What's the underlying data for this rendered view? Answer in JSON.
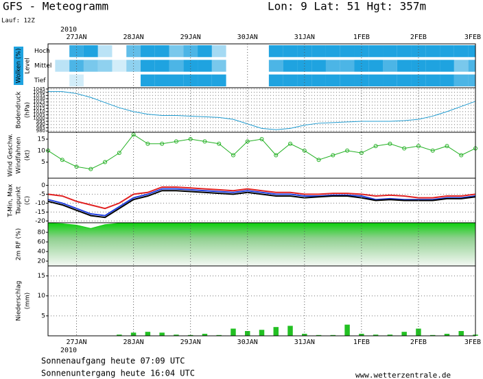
{
  "header": {
    "title": "GFS - Meteogramm",
    "location": "Lon: 9  Lat: 51  Hgt: 357m",
    "run": "Lauf: 12Z"
  },
  "time_axis": {
    "year": "2010",
    "xlim": [
      0,
      30
    ],
    "xticks": [
      {
        "value": 2,
        "label": "27JAN"
      },
      {
        "value": 6,
        "label": "28JAN"
      },
      {
        "value": 10,
        "label": "29JAN"
      },
      {
        "value": 14,
        "label": "30JAN"
      },
      {
        "value": 18,
        "label": "31JAN"
      },
      {
        "value": 22,
        "label": "1FEB"
      },
      {
        "value": 26,
        "label": "2FEB"
      },
      {
        "value": 30,
        "label": "3FEB"
      }
    ]
  },
  "chart_data": [
    {
      "type": "heatmap",
      "ylabel": [
        "Wolken (%)",
        "Level"
      ],
      "label_colors": [
        "#ffffff",
        "#000000"
      ],
      "color": "#1fa3e0",
      "categories": [
        "Hoch",
        "Mittel",
        "Tief"
      ],
      "values": [
        [
          0,
          0,
          90,
          100,
          30,
          0,
          70,
          100,
          100,
          60,
          80,
          100,
          40,
          0,
          0,
          0,
          100,
          100,
          100,
          100,
          100,
          100,
          100,
          100,
          100,
          100,
          100,
          100,
          100,
          100,
          100
        ],
        [
          0,
          30,
          80,
          60,
          50,
          20,
          50,
          100,
          100,
          80,
          100,
          100,
          60,
          0,
          0,
          0,
          80,
          100,
          100,
          100,
          80,
          80,
          100,
          100,
          80,
          100,
          100,
          100,
          100,
          60,
          80
        ],
        [
          0,
          0,
          20,
          0,
          0,
          0,
          0,
          100,
          100,
          100,
          100,
          100,
          100,
          0,
          0,
          0,
          100,
          100,
          100,
          100,
          100,
          100,
          100,
          100,
          100,
          100,
          100,
          100,
          100,
          80,
          80
        ]
      ]
    },
    {
      "type": "line",
      "ylabel": [
        "Bodendruck",
        "(hPa)"
      ],
      "label_colors": [
        "#000000",
        "#000000"
      ],
      "ylim": [
        978,
        1047
      ],
      "yticks": [
        1045,
        1040,
        1035,
        1030,
        1025,
        1020,
        1015,
        1010,
        1005,
        1000,
        995,
        990,
        985,
        980
      ],
      "grid": true,
      "series": [
        {
          "color": "#1f9bd0",
          "values": [
            1041,
            1041,
            1038,
            1032,
            1024,
            1016,
            1010,
            1006,
            1004,
            1004,
            1003,
            1002,
            1001,
            998,
            991,
            984,
            982,
            984,
            989,
            992,
            993,
            994,
            995,
            995,
            995,
            996,
            998,
            1003,
            1010,
            1018,
            1026
          ]
        }
      ]
    },
    {
      "type": "line",
      "ylabel": [
        "Wind Geschw.",
        "Windfahnen",
        "(kt)"
      ],
      "label_colors": [
        "#1aa01a",
        "#000000",
        "#000000"
      ],
      "ylim": [
        -2,
        18
      ],
      "yticks": [
        5,
        10,
        15
      ],
      "grid": false,
      "markers": true,
      "series": [
        {
          "color": "#22b022",
          "values": [
            10,
            6,
            3,
            2,
            5,
            9,
            17,
            13,
            13,
            14,
            15,
            14,
            13,
            8,
            14,
            15,
            8,
            13,
            10,
            6,
            8,
            10,
            9,
            12,
            13,
            11,
            12,
            10,
            12,
            8,
            11
          ]
        }
      ]
    },
    {
      "type": "line",
      "ylabel": [
        "T-Min, Max",
        "Taupunkt",
        "(C)"
      ],
      "label_colors": [
        "#2040d0",
        "#000000",
        "#000000"
      ],
      "ylim": [
        -21,
        4
      ],
      "yticks": [
        0,
        -5,
        -10,
        -15,
        -20
      ],
      "grid": true,
      "series": [
        {
          "color": "#e02020",
          "values": [
            -5,
            -6,
            -9,
            -11,
            -13,
            -10,
            -5,
            -4,
            -1,
            -1,
            -1.5,
            -2,
            -2.5,
            -3,
            -2,
            -3,
            -4,
            -4,
            -5,
            -5,
            -4.5,
            -4.5,
            -5,
            -6,
            -5.5,
            -6,
            -7,
            -7,
            -6,
            -6,
            -5
          ]
        },
        {
          "color": "#2040e0",
          "values": [
            -8,
            -10,
            -13,
            -16,
            -17,
            -12,
            -7,
            -5,
            -2,
            -2,
            -2.5,
            -3,
            -3.5,
            -4,
            -3,
            -4,
            -5,
            -5,
            -6,
            -6,
            -5.5,
            -5.5,
            -6,
            -8,
            -7.5,
            -8,
            -8,
            -8,
            -7,
            -7,
            -6
          ]
        },
        {
          "color": "#000000",
          "values": [
            -9,
            -11,
            -14,
            -17,
            -18,
            -13,
            -8,
            -6,
            -3,
            -3,
            -3.5,
            -4,
            -4.5,
            -5,
            -4,
            -5,
            -6,
            -6,
            -7,
            -6.5,
            -6,
            -6,
            -7,
            -8.5,
            -8,
            -8.5,
            -8.5,
            -8.5,
            -7.5,
            -7.5,
            -6.5
          ]
        }
      ]
    },
    {
      "type": "area",
      "ylabel": [
        "2m RF (%)"
      ],
      "label_colors": [
        "#1aa01a"
      ],
      "ylim": [
        10,
        100
      ],
      "yticks": [
        80,
        60,
        40,
        20
      ],
      "grid": false,
      "series": [
        {
          "color": "#10d010",
          "values": [
            99,
            98,
            95,
            88,
            96,
            99,
            99,
            99,
            99,
            99,
            99,
            99,
            99,
            99,
            99,
            99,
            99,
            99,
            99,
            99,
            99,
            99,
            99,
            99,
            99,
            99,
            99,
            99,
            99,
            99,
            99
          ]
        }
      ]
    },
    {
      "type": "bar",
      "ylabel": [
        "Niederschlag",
        "(mm)"
      ],
      "label_colors": [
        "#000000",
        "#000000"
      ],
      "ylim": [
        0,
        17.5
      ],
      "yticks": [
        15,
        10,
        5
      ],
      "grid": true,
      "series": [
        {
          "color": "#22c022",
          "values": [
            0,
            0,
            0,
            0,
            0,
            0.3,
            0.8,
            1.0,
            0.8,
            0.3,
            0.2,
            0.5,
            0.2,
            1.8,
            1.2,
            1.5,
            2.2,
            2.5,
            0.5,
            0.2,
            0.2,
            2.8,
            0.5,
            0.3,
            0.3,
            1.0,
            1.8,
            0.2,
            0.5,
            1.2,
            0.3
          ]
        }
      ]
    }
  ],
  "footer": {
    "sunrise": "Sonnenaufgang heute 07:09 UTC",
    "sunset": "Sonnenuntergang heute 16:04 UTC",
    "site": "www.wetterzentrale.de"
  }
}
